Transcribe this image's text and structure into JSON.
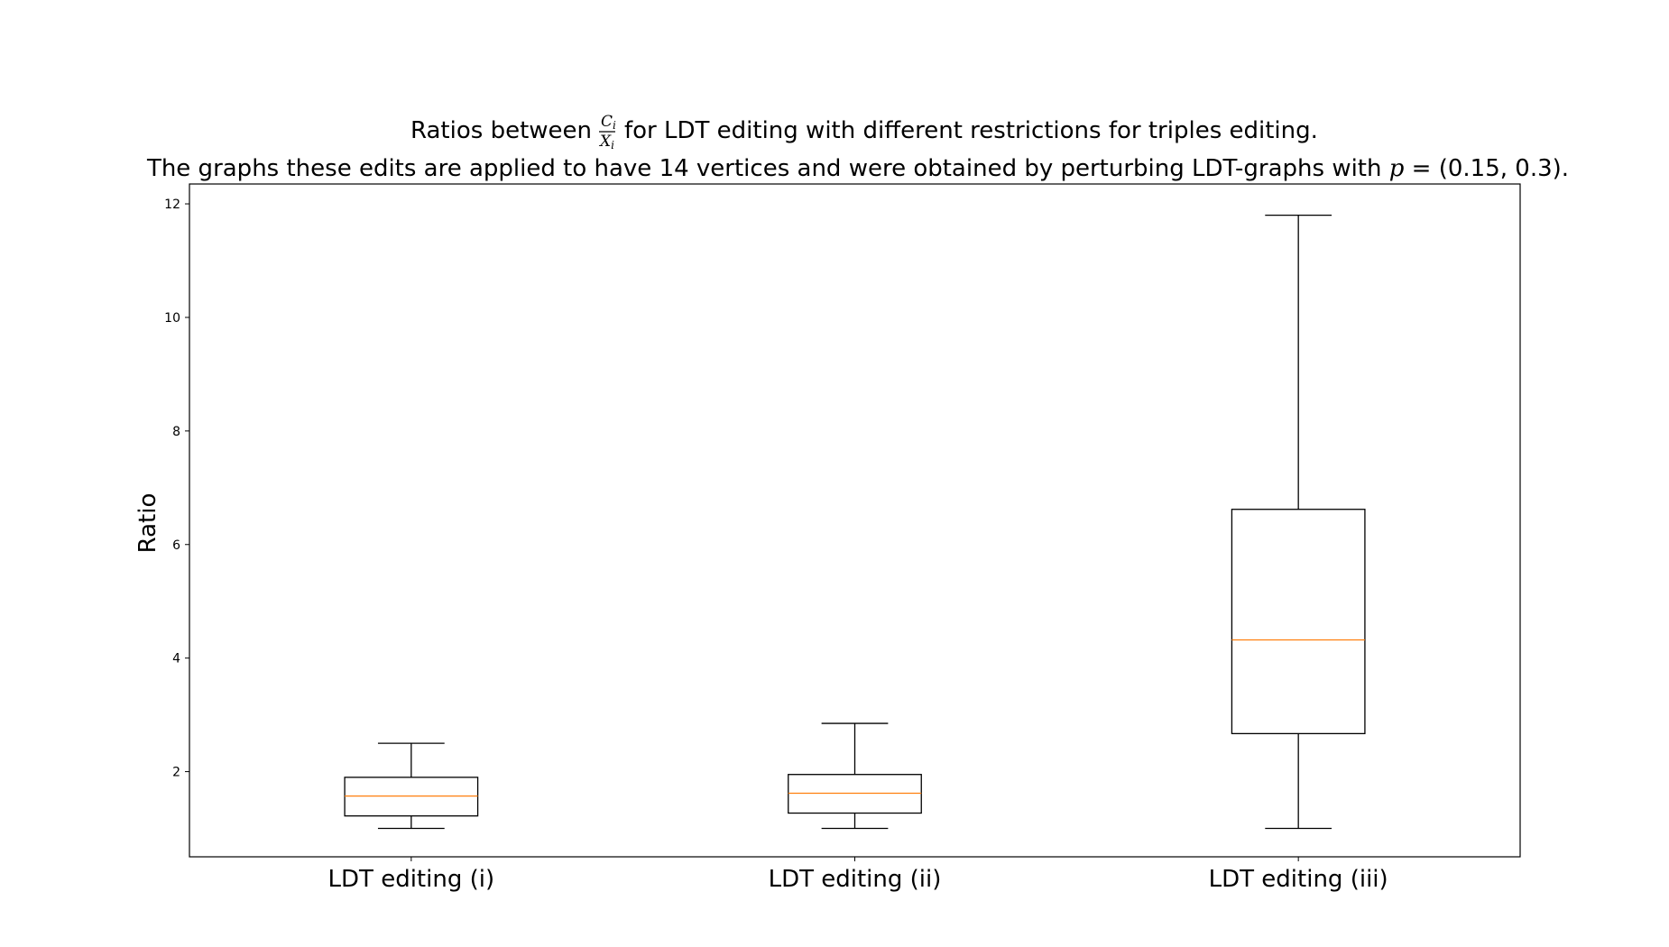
{
  "chart_data": {
    "type": "boxplot",
    "title": {
      "line1_prefix": "Ratios between",
      "fraction_numerator": "C",
      "fraction_numerator_sub": "i",
      "fraction_denominator": "X",
      "fraction_denominator_sub": "i",
      "line1_suffix": "for LDT editing with different restrictions for triples editing.",
      "line2_prefix": "The graphs these edits are applied to have 14 vertices and were obtained by perturbing LDT-graphs with",
      "line2_math_var": "p",
      "line2_math_rest": " = (0.15, 0.3)."
    },
    "xlabel": "",
    "ylabel": "Ratio",
    "ylim": [
      0.5,
      12.35
    ],
    "yticks": [
      2,
      4,
      6,
      8,
      10,
      12
    ],
    "categories": [
      "LDT editing (i)",
      "LDT editing (ii)",
      "LDT editing (iii)"
    ],
    "boxes": [
      {
        "whisker_low": 1.0,
        "q1": 1.22,
        "median": 1.57,
        "q3": 1.9,
        "whisker_high": 2.5
      },
      {
        "whisker_low": 1.0,
        "q1": 1.27,
        "median": 1.62,
        "q3": 1.95,
        "whisker_high": 2.85
      },
      {
        "whisker_low": 1.0,
        "q1": 2.67,
        "median": 4.32,
        "q3": 6.62,
        "whisker_high": 11.8
      }
    ],
    "grid": false,
    "legend": "none",
    "colors": {
      "box": "#000000",
      "median": "#ff7f0e",
      "axes": "#000000"
    }
  }
}
